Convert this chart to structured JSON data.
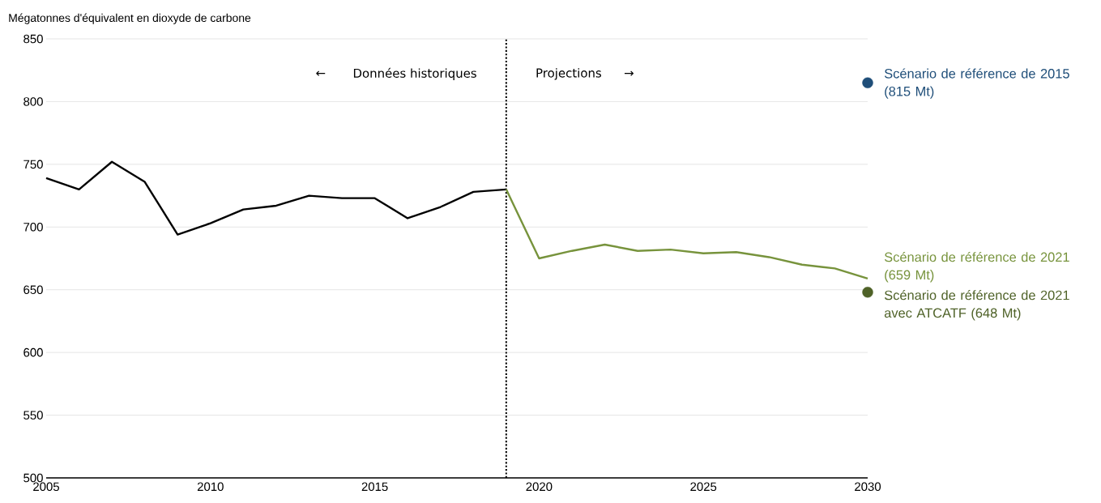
{
  "chart_data": {
    "type": "line",
    "ylabel": "Mégatonnes d'équivalent en dioxyde de carbone",
    "annotations": [
      "←",
      "Données historiques",
      "Projections",
      "→"
    ],
    "series": [
      {
        "color": "#000000",
        "x": [
          2005,
          2006,
          2007,
          2008,
          2009,
          2010,
          2011,
          2012,
          2013,
          2014,
          2015,
          2016,
          2017,
          2018,
          2019
        ],
        "values": [
          739,
          730,
          752,
          736,
          694,
          703,
          714,
          717,
          725,
          723,
          723,
          707,
          716,
          728,
          730
        ]
      },
      {
        "name": "Scénario de référence de 2021 (659 Mt)",
        "color": "#77933c",
        "x": [
          2019,
          2020,
          2021,
          2022,
          2023,
          2024,
          2025,
          2026,
          2027,
          2028,
          2029,
          2030
        ],
        "values": [
          730,
          675,
          681,
          686,
          681,
          682,
          679,
          680,
          676,
          670,
          667,
          659
        ]
      },
      {
        "name": "Scénario de référence de 2015 (815 Mt)",
        "type": "scatter",
        "color": "#1f4e79",
        "x": [
          2030
        ],
        "values": [
          815
        ]
      },
      {
        "name": "Scénario de référence de 2021 avec ATCATF (648 Mt)",
        "type": "scatter",
        "color": "#4f6228",
        "x": [
          2030
        ],
        "values": [
          648
        ]
      }
    ],
    "ref_lines": [
      {
        "axis": "x",
        "value": 2019,
        "color": "#000000",
        "line_style": "dotted"
      }
    ],
    "xlim": [
      2005,
      2030
    ],
    "xticks": [
      2005,
      2010,
      2015,
      2020,
      2025,
      2030
    ],
    "ylim": [
      500,
      850
    ],
    "yticks": [
      500,
      550,
      600,
      650,
      700,
      750,
      800,
      850
    ],
    "grid": "y",
    "line_style": "solid"
  }
}
